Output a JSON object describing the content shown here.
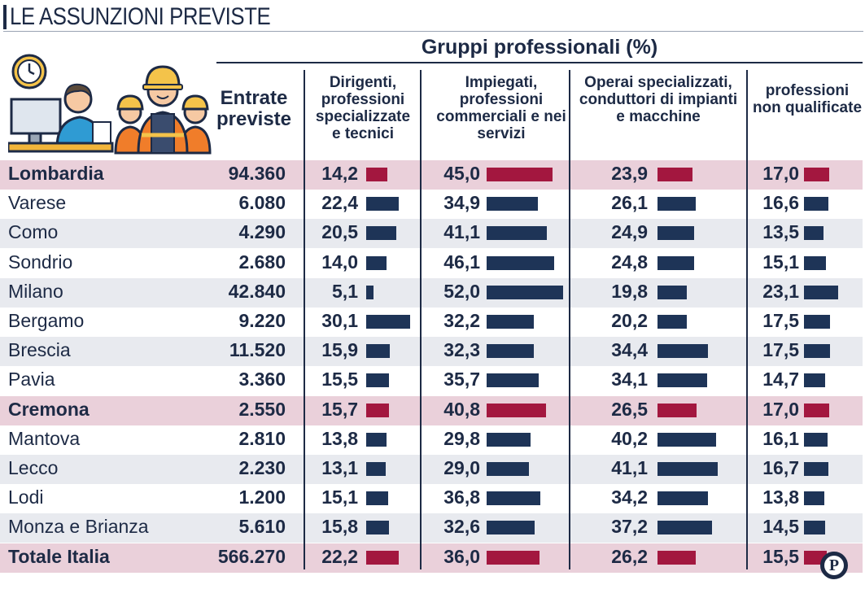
{
  "title": "LE ASSUNZIONI PREVISTE",
  "group_header": "Gruppi professionali (%)",
  "col_entrate": "Entrate previste",
  "columns": [
    "Dirigenti, professioni specializzate e tecnici",
    "Impiegati, professioni commerciali e nei servizi",
    "Operai specializzati, conduttori di impianti e macchine",
    "professioni non qualificate"
  ],
  "logo_letter": "P",
  "colors": {
    "navy": "#1d2a45",
    "bar_navy": "#1e3457",
    "bar_red": "#a3173f",
    "highlight": "#ead0da",
    "stripe": "#e8eaef"
  },
  "icons": [
    "office-worker-icon",
    "construction-workers-icon"
  ],
  "chart_data": {
    "type": "table",
    "title": "LE ASSUNZIONI PREVISTE",
    "series": [
      {
        "name": "Dirigenti, professioni specializzate e tecnici"
      },
      {
        "name": "Impiegati, professioni commerciali e nei servizi"
      },
      {
        "name": "Operai specializzati, conduttori di impianti e macchine"
      },
      {
        "name": "professioni non qualificate"
      }
    ],
    "rows": [
      {
        "name": "Lombardia",
        "entrate": "94.360",
        "vals": [
          "14,2",
          "45,0",
          "23,9",
          "17,0"
        ],
        "highlight": true
      },
      {
        "name": "Varese",
        "entrate": "6.080",
        "vals": [
          "22,4",
          "34,9",
          "26,1",
          "16,6"
        ],
        "highlight": false
      },
      {
        "name": "Como",
        "entrate": "4.290",
        "vals": [
          "20,5",
          "41,1",
          "24,9",
          "13,5"
        ],
        "highlight": false
      },
      {
        "name": "Sondrio",
        "entrate": "2.680",
        "vals": [
          "14,0",
          "46,1",
          "24,8",
          "15,1"
        ],
        "highlight": false
      },
      {
        "name": "Milano",
        "entrate": "42.840",
        "vals": [
          "5,1",
          "52,0",
          "19,8",
          "23,1"
        ],
        "highlight": false
      },
      {
        "name": "Bergamo",
        "entrate": "9.220",
        "vals": [
          "30,1",
          "32,2",
          "20,2",
          "17,5"
        ],
        "highlight": false
      },
      {
        "name": "Brescia",
        "entrate": "11.520",
        "vals": [
          "15,9",
          "32,3",
          "34,4",
          "17,5"
        ],
        "highlight": false
      },
      {
        "name": "Pavia",
        "entrate": "3.360",
        "vals": [
          "15,5",
          "35,7",
          "34,1",
          "14,7"
        ],
        "highlight": false
      },
      {
        "name": "Cremona",
        "entrate": "2.550",
        "vals": [
          "15,7",
          "40,8",
          "26,5",
          "17,0"
        ],
        "highlight": true
      },
      {
        "name": "Mantova",
        "entrate": "2.810",
        "vals": [
          "13,8",
          "29,8",
          "40,2",
          "16,1"
        ],
        "highlight": false
      },
      {
        "name": "Lecco",
        "entrate": "2.230",
        "vals": [
          "13,1",
          "29,0",
          "41,1",
          "16,7"
        ],
        "highlight": false
      },
      {
        "name": "Lodi",
        "entrate": "1.200",
        "vals": [
          "15,1",
          "36,8",
          "34,2",
          "13,8"
        ],
        "highlight": false
      },
      {
        "name": "Monza e Brianza",
        "entrate": "5.610",
        "vals": [
          "15,8",
          "32,6",
          "37,2",
          "14,5"
        ],
        "highlight": false
      },
      {
        "name": "Totale Italia",
        "entrate": "566.270",
        "vals": [
          "22,2",
          "36,0",
          "26,2",
          "15,5"
        ],
        "highlight": true
      }
    ]
  }
}
